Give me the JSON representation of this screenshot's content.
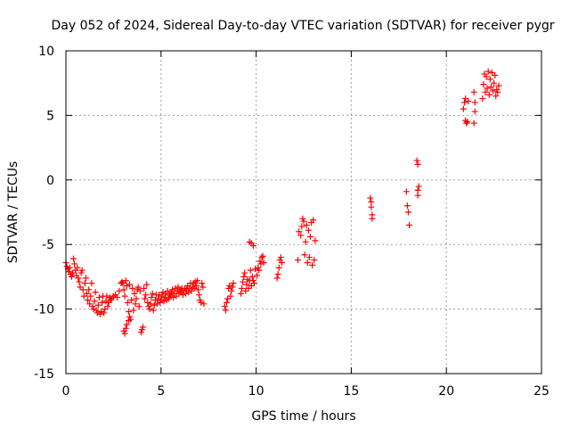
{
  "chart_data": {
    "type": "scatter",
    "title": "Day 052 of 2024, Sidereal Day-to-day VTEC variation (SDTVAR) for receiver pygr",
    "xlabel": "GPS time / hours",
    "ylabel": "SDTVAR / TECUs",
    "xlim": [
      0,
      25
    ],
    "ylim": [
      -15,
      10
    ],
    "xticks": [
      0,
      5,
      10,
      15,
      20,
      25
    ],
    "yticks": [
      -15,
      -10,
      -5,
      0,
      5,
      10
    ],
    "xtick_labels": [
      "0",
      "5",
      "10",
      "15",
      "20",
      "25"
    ],
    "ytick_labels": [
      "-15",
      "-10",
      "-5",
      "0",
      "5",
      "10"
    ],
    "grid": true,
    "marker": "+",
    "color": "#ff0000",
    "series": [
      {
        "name": "SDTVAR",
        "points": [
          [
            0.0,
            -6.4
          ],
          [
            0.05,
            -6.7
          ],
          [
            0.1,
            -6.9
          ],
          [
            0.15,
            -7.1
          ],
          [
            0.2,
            -6.8
          ],
          [
            0.25,
            -7.3
          ],
          [
            0.3,
            -7.5
          ],
          [
            0.35,
            -7.2
          ],
          [
            0.4,
            -6.1
          ],
          [
            0.45,
            -6.5
          ],
          [
            0.5,
            -7.0
          ],
          [
            0.55,
            -7.4
          ],
          [
            0.6,
            -6.8
          ],
          [
            0.65,
            -7.6
          ],
          [
            0.7,
            -7.9
          ],
          [
            0.75,
            -8.3
          ],
          [
            0.8,
            -7.2
          ],
          [
            0.85,
            -7.0
          ],
          [
            0.9,
            -8.5
          ],
          [
            0.95,
            -9.0
          ],
          [
            1.0,
            -8.0
          ],
          [
            1.05,
            -7.6
          ],
          [
            1.1,
            -8.8
          ],
          [
            1.15,
            -9.3
          ],
          [
            1.2,
            -8.5
          ],
          [
            1.25,
            -9.6
          ],
          [
            1.3,
            -9.0
          ],
          [
            1.35,
            -8.0
          ],
          [
            1.4,
            -9.8
          ],
          [
            1.45,
            -10.0
          ],
          [
            1.5,
            -9.4
          ],
          [
            1.55,
            -8.7
          ],
          [
            1.6,
            -10.1
          ],
          [
            1.65,
            -10.3
          ],
          [
            1.7,
            -9.7
          ],
          [
            1.75,
            -9.1
          ],
          [
            1.8,
            -10.4
          ],
          [
            1.85,
            -10.2
          ],
          [
            1.9,
            -9.5
          ],
          [
            1.95,
            -9.0
          ],
          [
            2.0,
            -10.3
          ],
          [
            2.05,
            -10.0
          ],
          [
            2.1,
            -9.4
          ],
          [
            2.15,
            -9.0
          ],
          [
            2.2,
            -9.8
          ],
          [
            2.25,
            -9.5
          ],
          [
            2.3,
            -9.1
          ],
          [
            2.35,
            -9.3
          ],
          [
            2.4,
            -9.2
          ],
          [
            2.5,
            -9.0
          ],
          [
            2.6,
            -8.9
          ],
          [
            2.7,
            -9.1
          ],
          [
            2.8,
            -8.6
          ],
          [
            2.9,
            -8.0
          ],
          [
            2.95,
            -7.9
          ],
          [
            3.0,
            -8.0
          ],
          [
            3.05,
            -8.5
          ],
          [
            3.1,
            -9.0
          ],
          [
            3.15,
            -7.8
          ],
          [
            3.2,
            -8.2
          ],
          [
            3.25,
            -9.5
          ],
          [
            3.3,
            -10.2
          ],
          [
            3.35,
            -8.1
          ],
          [
            3.4,
            -10.8
          ],
          [
            3.45,
            -9.3
          ],
          [
            3.5,
            -8.4
          ],
          [
            3.55,
            -10.1
          ],
          [
            3.6,
            -8.8
          ],
          [
            3.65,
            -9.6
          ],
          [
            3.7,
            -9.2
          ],
          [
            3.75,
            -8.5
          ],
          [
            3.05,
            -11.7
          ],
          [
            3.1,
            -11.9
          ],
          [
            3.15,
            -11.5
          ],
          [
            3.2,
            -11.2
          ],
          [
            3.3,
            -10.9
          ],
          [
            3.35,
            -10.6
          ],
          [
            3.8,
            -8.3
          ],
          [
            3.85,
            -9.8
          ],
          [
            3.9,
            -8.6
          ],
          [
            3.95,
            -11.8
          ],
          [
            4.0,
            -11.6
          ],
          [
            4.05,
            -11.4
          ],
          [
            4.1,
            -8.4
          ],
          [
            4.15,
            -9.2
          ],
          [
            4.2,
            -8.9
          ],
          [
            4.25,
            -8.1
          ],
          [
            4.3,
            -9.5
          ],
          [
            4.35,
            -9.8
          ],
          [
            4.4,
            -10.0
          ],
          [
            4.45,
            -9.6
          ],
          [
            4.5,
            -9.1
          ],
          [
            4.55,
            -8.8
          ],
          [
            4.6,
            -10.1
          ],
          [
            4.65,
            -9.7
          ],
          [
            4.7,
            -9.3
          ],
          [
            4.75,
            -8.9
          ],
          [
            4.8,
            -9.6
          ],
          [
            4.85,
            -9.2
          ],
          [
            4.9,
            -8.9
          ],
          [
            4.95,
            -9.5
          ],
          [
            5.0,
            -9.3
          ],
          [
            5.05,
            -9.0
          ],
          [
            5.1,
            -8.7
          ],
          [
            5.15,
            -9.4
          ],
          [
            5.2,
            -9.1
          ],
          [
            5.25,
            -8.8
          ],
          [
            5.3,
            -9.3
          ],
          [
            5.35,
            -8.6
          ],
          [
            5.4,
            -9.2
          ],
          [
            5.45,
            -8.9
          ],
          [
            5.5,
            -9.0
          ],
          [
            5.55,
            -8.7
          ],
          [
            5.6,
            -8.5
          ],
          [
            5.65,
            -9.1
          ],
          [
            5.7,
            -8.8
          ],
          [
            5.75,
            -8.4
          ],
          [
            5.8,
            -9.0
          ],
          [
            5.85,
            -8.6
          ],
          [
            5.9,
            -8.3
          ],
          [
            5.95,
            -8.8
          ],
          [
            6.0,
            -8.5
          ],
          [
            6.05,
            -8.7
          ],
          [
            6.1,
            -8.4
          ],
          [
            6.15,
            -8.9
          ],
          [
            6.2,
            -8.6
          ],
          [
            6.25,
            -8.4
          ],
          [
            6.3,
            -8.8
          ],
          [
            6.35,
            -8.5
          ],
          [
            6.4,
            -8.2
          ],
          [
            6.45,
            -8.7
          ],
          [
            6.5,
            -8.4
          ],
          [
            6.55,
            -8.0
          ],
          [
            6.6,
            -8.6
          ],
          [
            6.65,
            -8.3
          ],
          [
            6.7,
            -8.0
          ],
          [
            6.75,
            -8.4
          ],
          [
            6.8,
            -7.9
          ],
          [
            6.85,
            -8.2
          ],
          [
            6.9,
            -7.8
          ],
          [
            6.95,
            -8.5
          ],
          [
            7.0,
            -8.9
          ],
          [
            7.05,
            -9.3
          ],
          [
            7.1,
            -9.5
          ],
          [
            7.15,
            -8.0
          ],
          [
            7.2,
            -8.3
          ],
          [
            7.25,
            -9.6
          ],
          [
            8.35,
            -9.8
          ],
          [
            8.4,
            -10.1
          ],
          [
            8.45,
            -9.5
          ],
          [
            8.5,
            -9.2
          ],
          [
            8.55,
            -8.4
          ],
          [
            8.6,
            -8.2
          ],
          [
            8.65,
            -9.0
          ],
          [
            8.7,
            -8.6
          ],
          [
            8.75,
            -8.3
          ],
          [
            8.8,
            -8.0
          ],
          [
            9.2,
            -8.8
          ],
          [
            9.25,
            -8.4
          ],
          [
            9.3,
            -7.9
          ],
          [
            9.35,
            -7.5
          ],
          [
            9.4,
            -7.2
          ],
          [
            9.45,
            -8.6
          ],
          [
            9.5,
            -8.1
          ],
          [
            9.55,
            -7.7
          ],
          [
            9.6,
            -8.4
          ],
          [
            9.65,
            -7.8
          ],
          [
            9.7,
            -7.0
          ],
          [
            9.75,
            -8.2
          ],
          [
            9.8,
            -7.5
          ],
          [
            9.85,
            -7.8
          ],
          [
            9.9,
            -8.0
          ],
          [
            9.95,
            -6.9
          ],
          [
            9.65,
            -4.8
          ],
          [
            9.75,
            -4.9
          ],
          [
            9.85,
            -5.1
          ],
          [
            10.05,
            -7.4
          ],
          [
            10.1,
            -6.8
          ],
          [
            10.15,
            -7.0
          ],
          [
            10.2,
            -6.3
          ],
          [
            10.25,
            -6.5
          ],
          [
            10.3,
            -6.0
          ],
          [
            10.35,
            -5.9
          ],
          [
            10.4,
            -6.4
          ],
          [
            11.1,
            -7.6
          ],
          [
            11.15,
            -7.3
          ],
          [
            11.2,
            -6.8
          ],
          [
            11.25,
            -6.2
          ],
          [
            11.3,
            -6.0
          ],
          [
            11.35,
            -6.4
          ],
          [
            12.2,
            -6.2
          ],
          [
            12.25,
            -4.0
          ],
          [
            12.35,
            -4.3
          ],
          [
            12.4,
            -3.6
          ],
          [
            12.45,
            -3.0
          ],
          [
            12.5,
            -3.2
          ],
          [
            12.55,
            -5.8
          ],
          [
            12.6,
            -4.8
          ],
          [
            12.65,
            -3.5
          ],
          [
            12.7,
            -6.4
          ],
          [
            12.75,
            -3.9
          ],
          [
            12.8,
            -6.0
          ],
          [
            12.85,
            -4.4
          ],
          [
            12.9,
            -3.3
          ],
          [
            12.95,
            -6.6
          ],
          [
            13.0,
            -3.1
          ],
          [
            13.05,
            -6.2
          ],
          [
            13.1,
            -4.7
          ],
          [
            16.0,
            -1.4
          ],
          [
            16.05,
            -2.1
          ],
          [
            16.1,
            -2.7
          ],
          [
            16.1,
            -3.0
          ],
          [
            16.05,
            -1.7
          ],
          [
            17.9,
            -0.9
          ],
          [
            17.95,
            -2.0
          ],
          [
            18.0,
            -2.5
          ],
          [
            18.05,
            -3.5
          ],
          [
            18.45,
            1.5
          ],
          [
            18.5,
            1.2
          ],
          [
            18.55,
            -0.5
          ],
          [
            18.5,
            -0.8
          ],
          [
            18.5,
            -1.2
          ],
          [
            20.9,
            5.5
          ],
          [
            20.95,
            6.0
          ],
          [
            21.0,
            6.3
          ],
          [
            21.05,
            4.4
          ],
          [
            21.1,
            4.5
          ],
          [
            21.15,
            6.1
          ],
          [
            21.0,
            4.6
          ],
          [
            21.45,
            6.8
          ],
          [
            21.5,
            6.0
          ],
          [
            21.5,
            5.3
          ],
          [
            21.45,
            4.4
          ],
          [
            21.9,
            6.3
          ],
          [
            21.95,
            7.4
          ],
          [
            22.0,
            8.2
          ],
          [
            22.05,
            6.8
          ],
          [
            22.1,
            8.0
          ],
          [
            22.15,
            7.1
          ],
          [
            22.2,
            8.4
          ],
          [
            22.25,
            6.6
          ],
          [
            22.3,
            7.8
          ],
          [
            22.35,
            7.2
          ],
          [
            22.4,
            8.3
          ],
          [
            22.45,
            6.9
          ],
          [
            22.5,
            7.5
          ],
          [
            22.55,
            8.1
          ],
          [
            22.6,
            6.5
          ],
          [
            22.65,
            7.0
          ],
          [
            22.7,
            6.8
          ],
          [
            22.75,
            7.3
          ]
        ]
      }
    ]
  }
}
